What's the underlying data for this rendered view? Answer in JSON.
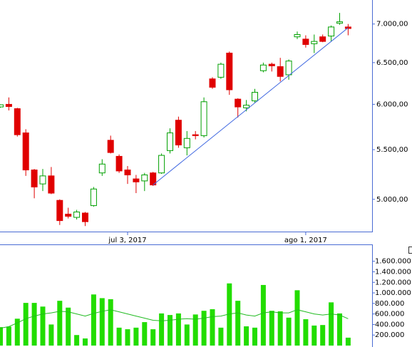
{
  "chart_data": [
    {
      "type": "candlestick",
      "log_scale": true,
      "categories": [
        null,
        null,
        null,
        null,
        null,
        null,
        null,
        null,
        null,
        null,
        null,
        null,
        null,
        null,
        null,
        "jul 3, 2017",
        null,
        null,
        null,
        null,
        null,
        null,
        null,
        null,
        null,
        null,
        null,
        null,
        null,
        null,
        null,
        null,
        null,
        null,
        null,
        null,
        "ago 1, 2017",
        null,
        null,
        null,
        null,
        null
      ],
      "open": [
        5970,
        6000,
        5950,
        5680,
        5290,
        5150,
        5230,
        4990,
        4860,
        4830,
        4870,
        4940,
        5260,
        5600,
        5430,
        5290,
        5200,
        5180,
        5260,
        5260,
        5490,
        5820,
        5520,
        5660,
        5650,
        6300,
        6320,
        6620,
        6060,
        5960,
        6040,
        6400,
        6480,
        6450,
        6350,
        6830,
        6800,
        6740,
        6830,
        6840,
        7010,
        6960
      ],
      "high": [
        6000,
        6080,
        5960,
        5720,
        5300,
        5300,
        5320,
        5000,
        4920,
        4900,
        4880,
        5120,
        5400,
        5650,
        5450,
        5330,
        5240,
        5260,
        5270,
        5460,
        5730,
        5860,
        5700,
        5700,
        6080,
        6320,
        6500,
        6640,
        6070,
        6050,
        6180,
        6500,
        6500,
        6560,
        6540,
        6900,
        6850,
        6860,
        6860,
        6980,
        7150,
        7000
      ],
      "low": [
        5960,
        5930,
        5640,
        5230,
        5010,
        5080,
        5050,
        4760,
        4820,
        4810,
        4750,
        4930,
        5230,
        5460,
        5260,
        5150,
        5060,
        5080,
        5130,
        5250,
        5460,
        5520,
        5440,
        5610,
        5630,
        6180,
        6300,
        6110,
        5850,
        5920,
        6020,
        6380,
        6390,
        6270,
        6290,
        6800,
        6690,
        6620,
        6760,
        6770,
        6990,
        6850
      ],
      "close": [
        5995,
        5975,
        5660,
        5290,
        5120,
        5230,
        5060,
        4800,
        4840,
        4880,
        4790,
        5100,
        5350,
        5470,
        5280,
        5240,
        5170,
        5240,
        5140,
        5440,
        5680,
        5550,
        5620,
        5650,
        6030,
        6200,
        6480,
        6170,
        5970,
        5990,
        6140,
        6470,
        6460,
        6330,
        6520,
        6860,
        6730,
        6770,
        6770,
        6960,
        7030,
        6940
      ],
      "up_color": "#00a000",
      "down_color": "#e00000",
      "trendline": {
        "color": "#4169e1",
        "index": [
          18,
          41
        ],
        "values": [
          5140,
          6950
        ]
      },
      "ylim": [
        4700,
        7330
      ],
      "yticks": [
        {
          "value": 5000,
          "label": "5.000,00"
        },
        {
          "value": 5500,
          "label": "5.500,00"
        },
        {
          "value": 6000,
          "label": "6.000,00"
        },
        {
          "value": 6500,
          "label": "6.500,00"
        },
        {
          "value": 7000,
          "label": "7.000,00"
        }
      ]
    },
    {
      "type": "bar",
      "color": "#22dd00",
      "average_color": "#22bb22",
      "values": [
        350000,
        360000,
        510000,
        810000,
        810000,
        740000,
        400000,
        850000,
        720000,
        200000,
        135000,
        970000,
        900000,
        880000,
        340000,
        310000,
        340000,
        445000,
        310000,
        610000,
        580000,
        610000,
        400000,
        590000,
        660000,
        690000,
        340000,
        1180000,
        850000,
        365000,
        340000,
        1150000,
        660000,
        650000,
        530000,
        1050000,
        500000,
        380000,
        390000,
        820000,
        610000,
        150000
      ],
      "average": [
        330000,
        360000,
        430000,
        510000,
        560000,
        600000,
        620000,
        650000,
        640000,
        600000,
        560000,
        610000,
        650000,
        680000,
        640000,
        600000,
        560000,
        520000,
        480000,
        470000,
        480000,
        500000,
        510000,
        500000,
        520000,
        550000,
        560000,
        600000,
        620000,
        580000,
        560000,
        620000,
        640000,
        620000,
        620000,
        680000,
        640000,
        600000,
        580000,
        600000,
        580000,
        510000
      ],
      "ylim": [
        0,
        1920000
      ],
      "yticks": [
        {
          "value": 200000,
          "label": "200.000"
        },
        {
          "value": 400000,
          "label": "400.000"
        },
        {
          "value": 600000,
          "label": "600.000"
        },
        {
          "value": 800000,
          "label": "800.000"
        },
        {
          "value": 1000000,
          "label": "1.000.000"
        },
        {
          "value": 1200000,
          "label": "1.200.000"
        },
        {
          "value": 1400000,
          "label": "1.400.000"
        },
        {
          "value": 1600000,
          "label": "1.600.000"
        }
      ]
    }
  ]
}
